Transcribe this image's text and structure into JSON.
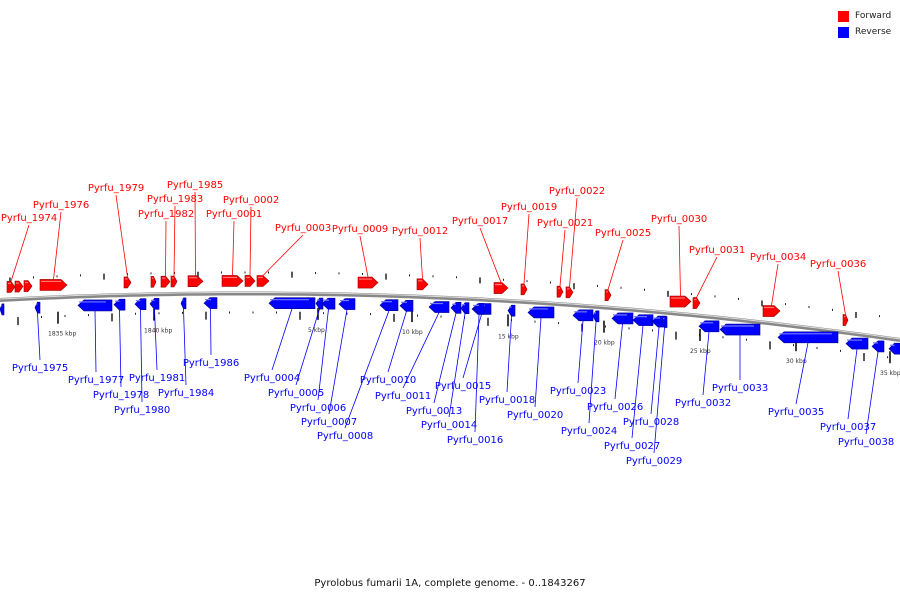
{
  "legend": [
    {
      "label": "Forward",
      "color": "#ff0000"
    },
    {
      "label": "Reverse",
      "color": "#0000ff"
    }
  ],
  "caption": "Pyrolobus fumarii 1A, complete genome. - 0..1843267",
  "scale_labels": [
    "1835 kbp",
    "1840 kbp",
    "5 kbp",
    "10 kbp",
    "15 kbp",
    "20 kbp",
    "25 kbp",
    "30 kbp",
    "35 kbp"
  ],
  "forward_genes": [
    "Pyrfu_1974",
    "Pyrfu_1976",
    "Pyrfu_1979",
    "Pyrfu_1982",
    "Pyrfu_1983",
    "Pyrfu_1985",
    "Pyrfu_0001",
    "Pyrfu_0002",
    "Pyrfu_0003",
    "Pyrfu_0009",
    "Pyrfu_0012",
    "Pyrfu_0017",
    "Pyrfu_0019",
    "Pyrfu_0021",
    "Pyrfu_0022",
    "Pyrfu_0025",
    "Pyrfu_0030",
    "Pyrfu_0031",
    "Pyrfu_0034",
    "Pyrfu_0036"
  ],
  "reverse_genes": [
    "Pyrfu_1975",
    "Pyrfu_1977",
    "Pyrfu_1978",
    "Pyrfu_1980",
    "Pyrfu_1981",
    "Pyrfu_1984",
    "Pyrfu_1986",
    "Pyrfu_0004",
    "Pyrfu_0005",
    "Pyrfu_0006",
    "Pyrfu_0007",
    "Pyrfu_0008",
    "Pyrfu_0010",
    "Pyrfu_0011",
    "Pyrfu_0013",
    "Pyrfu_0014",
    "Pyrfu_0015",
    "Pyrfu_0016",
    "Pyrfu_0018",
    "Pyrfu_0020",
    "Pyrfu_0023",
    "Pyrfu_0024",
    "Pyrfu_0026",
    "Pyrfu_0027",
    "Pyrfu_0028",
    "Pyrfu_0029",
    "Pyrfu_0032",
    "Pyrfu_0033",
    "Pyrfu_0035",
    "Pyrfu_0037",
    "Pyrfu_0038"
  ]
}
